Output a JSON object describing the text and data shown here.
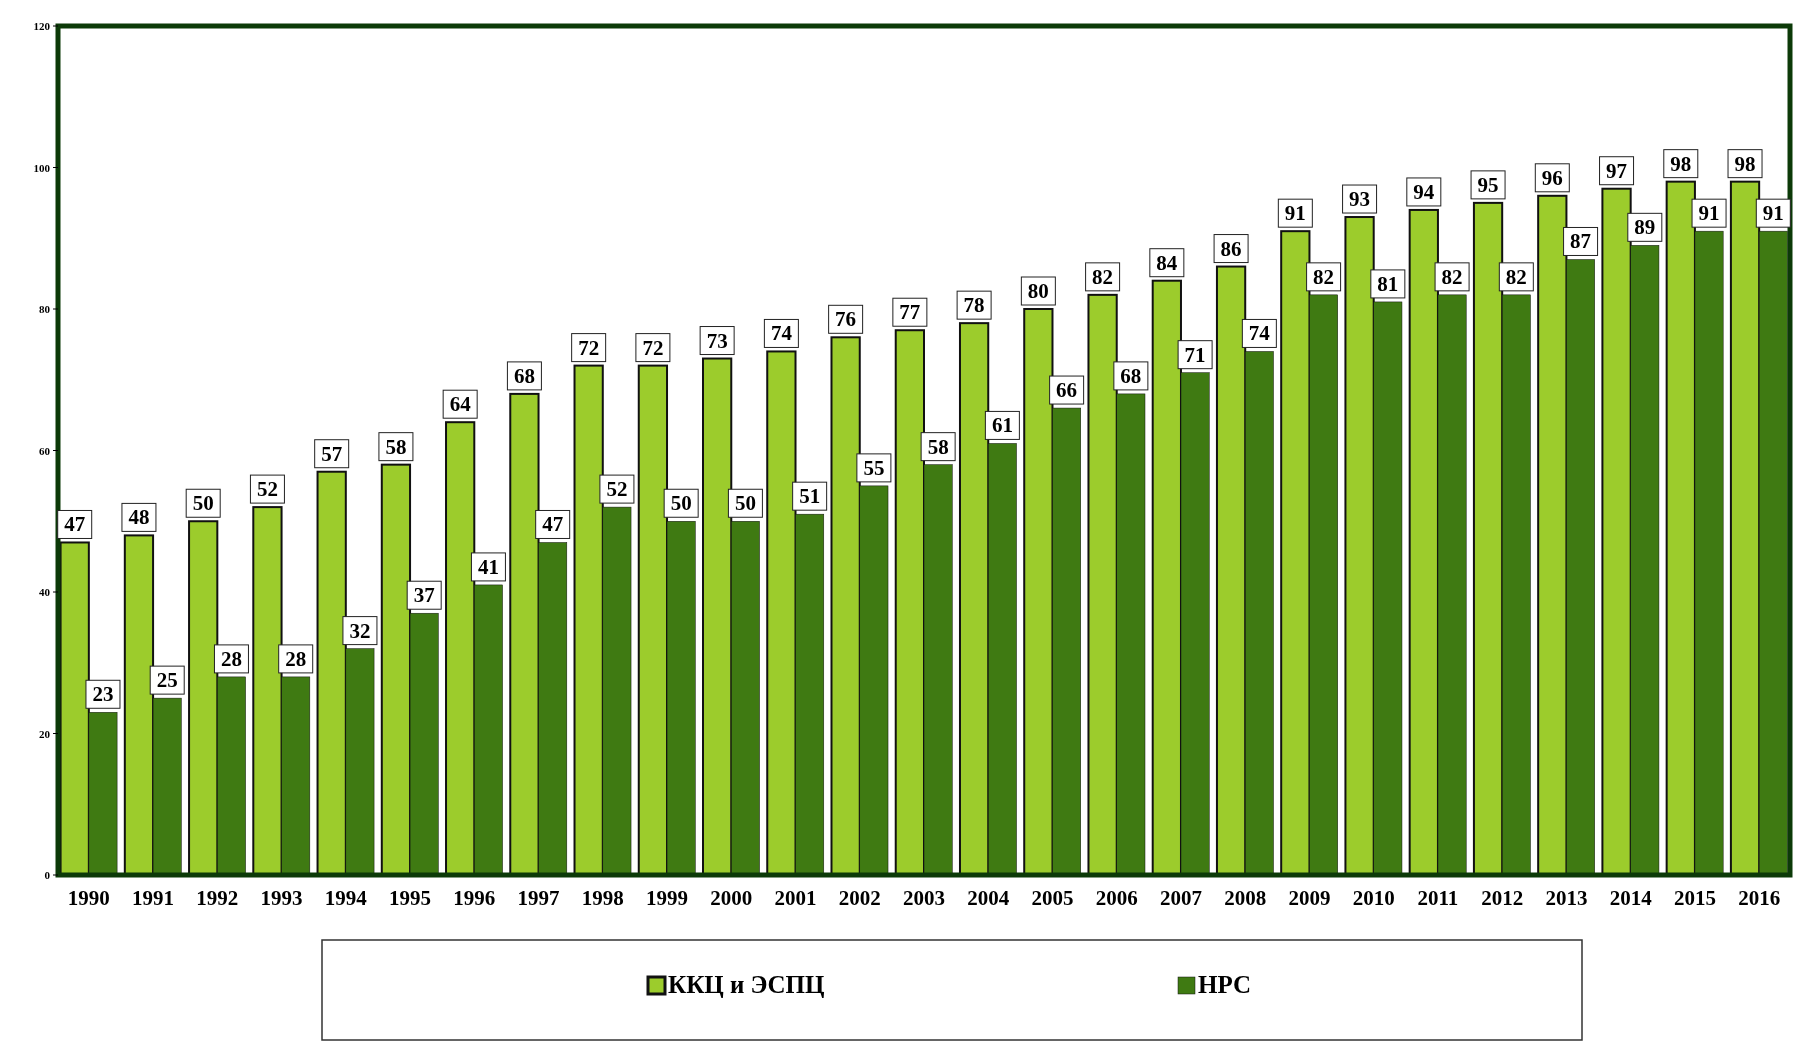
{
  "chart_data": {
    "type": "bar",
    "categories": [
      "1990",
      "1991",
      "1992",
      "1993",
      "1994",
      "1995",
      "1996",
      "1997",
      "1998",
      "1999",
      "2000",
      "2001",
      "2002",
      "2003",
      "2004",
      "2005",
      "2006",
      "2007",
      "2008",
      "2009",
      "2010",
      "2011",
      "2012",
      "2013",
      "2014",
      "2015",
      "2016"
    ],
    "series": [
      {
        "name": "ККЦ и ЭСПЦ",
        "color": "#9ccc2c",
        "values": [
          47,
          48,
          50,
          52,
          57,
          58,
          64,
          68,
          72,
          72,
          73,
          74,
          76,
          77,
          78,
          80,
          82,
          84,
          86,
          91,
          93,
          94,
          95,
          96,
          97,
          98,
          98
        ]
      },
      {
        "name": "НРС",
        "color": "#3f7a12",
        "values": [
          23,
          25,
          28,
          28,
          32,
          37,
          41,
          47,
          52,
          50,
          50,
          51,
          55,
          58,
          61,
          66,
          68,
          71,
          74,
          82,
          81,
          82,
          82,
          87,
          89,
          91,
          91
        ]
      }
    ],
    "ylim": [
      0,
      120
    ],
    "yticks": [
      0,
      20,
      40,
      60,
      80,
      100,
      120
    ],
    "data_labels": true,
    "legend": "bottom"
  }
}
